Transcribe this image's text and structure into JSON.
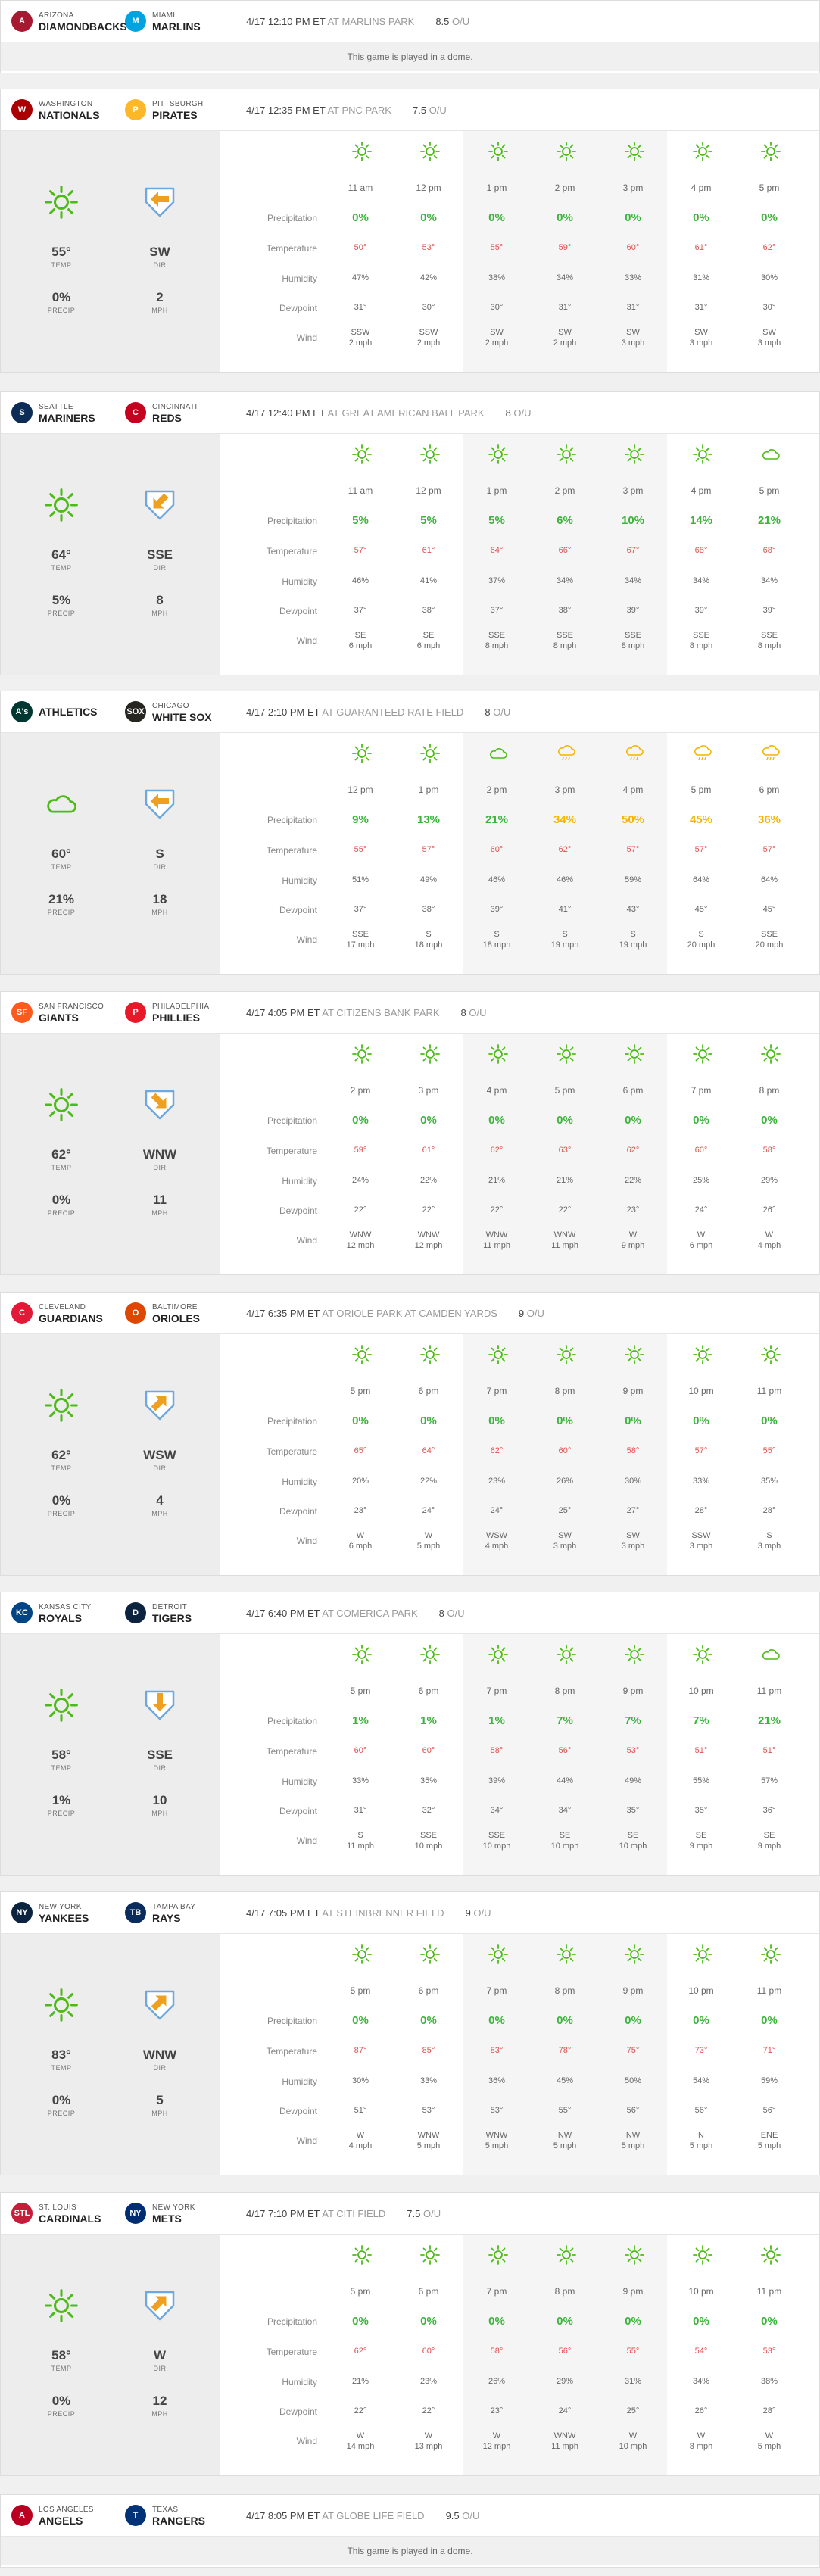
{
  "games": [
    {
      "away": {
        "city": "ARIZONA",
        "name": "DIAMONDBACKS",
        "color": "#a71930",
        "abbr": "A"
      },
      "home": {
        "city": "MIAMI",
        "name": "MARLINS",
        "color": "#00a3e0",
        "abbr": "M"
      },
      "time": "4/17 12:10 PM ET",
      "park": "AT MARLINS PARK",
      "ou": "8.5",
      "ou_label": "O/U",
      "dome": "This game is played in a dome."
    },
    {
      "away": {
        "city": "WASHINGTON",
        "name": "NATIONALS",
        "color": "#ab0003",
        "abbr": "W"
      },
      "home": {
        "city": "PITTSBURGH",
        "name": "PIRATES",
        "color": "#fdb827",
        "abbr": "P"
      },
      "time": "4/17 12:35 PM ET",
      "park": "AT PNC PARK",
      "ou": "7.5",
      "ou_label": "O/U",
      "summary": {
        "temp": "55°",
        "temp_label": "TEMP",
        "precip": "0%",
        "precip_label": "PRECIP",
        "dir": "SW",
        "dir_label": "DIR",
        "mph": "2",
        "mph_label": "MPH",
        "icon": "sun",
        "arrow": "left"
      },
      "row_labels": [
        "Precipitation",
        "Temperature",
        "Humidity",
        "Dewpoint",
        "Wind"
      ],
      "groups": [
        2,
        3,
        2
      ],
      "hours": [
        {
          "t": "11 am",
          "icon": "sun",
          "p": "0%",
          "temp": "50°",
          "hum": "47%",
          "dew": "31°",
          "w1": "SSW",
          "w2": "2 mph"
        },
        {
          "t": "12 pm",
          "icon": "sun",
          "p": "0%",
          "temp": "53°",
          "hum": "42%",
          "dew": "30°",
          "w1": "SSW",
          "w2": "2 mph"
        },
        {
          "t": "1 pm",
          "icon": "sun",
          "p": "0%",
          "temp": "55°",
          "hum": "38%",
          "dew": "30°",
          "w1": "SW",
          "w2": "2 mph"
        },
        {
          "t": "2 pm",
          "icon": "sun",
          "p": "0%",
          "temp": "59°",
          "hum": "34%",
          "dew": "31°",
          "w1": "SW",
          "w2": "2 mph"
        },
        {
          "t": "3 pm",
          "icon": "sun",
          "p": "0%",
          "temp": "60°",
          "hum": "33%",
          "dew": "31°",
          "w1": "SW",
          "w2": "3 mph"
        },
        {
          "t": "4 pm",
          "icon": "sun",
          "p": "0%",
          "temp": "61°",
          "hum": "31%",
          "dew": "31°",
          "w1": "SW",
          "w2": "3 mph"
        },
        {
          "t": "5 pm",
          "icon": "sun",
          "p": "0%",
          "temp": "62°",
          "hum": "30%",
          "dew": "30°",
          "w1": "SW",
          "w2": "3 mph"
        }
      ]
    },
    {
      "away": {
        "city": "SEATTLE",
        "name": "MARINERS",
        "color": "#0c2c56",
        "abbr": "S"
      },
      "home": {
        "city": "CINCINNATI",
        "name": "REDS",
        "color": "#c6011f",
        "abbr": "C"
      },
      "time": "4/17 12:40 PM ET",
      "park": "AT GREAT AMERICAN BALL PARK",
      "ou": "8",
      "ou_label": "O/U",
      "summary": {
        "temp": "64°",
        "temp_label": "TEMP",
        "precip": "5%",
        "precip_label": "PRECIP",
        "dir": "SSE",
        "dir_label": "DIR",
        "mph": "8",
        "mph_label": "MPH",
        "icon": "sun",
        "arrow": "down-left"
      },
      "row_labels": [
        "Precipitation",
        "Temperature",
        "Humidity",
        "Dewpoint",
        "Wind"
      ],
      "groups": [
        2,
        3,
        2
      ],
      "hours": [
        {
          "t": "11 am",
          "icon": "sun",
          "p": "5%",
          "temp": "57°",
          "hum": "46%",
          "dew": "37°",
          "w1": "SE",
          "w2": "6 mph"
        },
        {
          "t": "12 pm",
          "icon": "sun",
          "p": "5%",
          "temp": "61°",
          "hum": "41%",
          "dew": "38°",
          "w1": "SE",
          "w2": "6 mph"
        },
        {
          "t": "1 pm",
          "icon": "sun",
          "p": "5%",
          "temp": "64°",
          "hum": "37%",
          "dew": "37°",
          "w1": "SSE",
          "w2": "8 mph"
        },
        {
          "t": "2 pm",
          "icon": "sun",
          "p": "6%",
          "temp": "66°",
          "hum": "34%",
          "dew": "38°",
          "w1": "SSE",
          "w2": "8 mph"
        },
        {
          "t": "3 pm",
          "icon": "sun",
          "p": "10%",
          "temp": "67°",
          "hum": "34%",
          "dew": "39°",
          "w1": "SSE",
          "w2": "8 mph"
        },
        {
          "t": "4 pm",
          "icon": "sun",
          "p": "14%",
          "temp": "68°",
          "hum": "34%",
          "dew": "39°",
          "w1": "SSE",
          "w2": "8 mph"
        },
        {
          "t": "5 pm",
          "icon": "cloud",
          "p": "21%",
          "temp": "68°",
          "hum": "34%",
          "dew": "39°",
          "w1": "SSE",
          "w2": "8 mph"
        }
      ]
    },
    {
      "away": {
        "city": "",
        "name": "ATHLETICS",
        "color": "#003831",
        "abbr": "A's"
      },
      "home": {
        "city": "CHICAGO",
        "name": "WHITE SOX",
        "color": "#27251f",
        "abbr": "SOX"
      },
      "time": "4/17 2:10 PM ET",
      "park": "AT GUARANTEED RATE FIELD",
      "ou": "8",
      "ou_label": "O/U",
      "summary": {
        "temp": "60°",
        "temp_label": "TEMP",
        "precip": "21%",
        "precip_label": "PRECIP",
        "dir": "S",
        "dir_label": "DIR",
        "mph": "18",
        "mph_label": "MPH",
        "icon": "cloud",
        "arrow": "left"
      },
      "row_labels": [
        "Precipitation",
        "Temperature",
        "Humidity",
        "Dewpoint",
        "Wind"
      ],
      "groups": [
        2,
        3,
        2
      ],
      "hours": [
        {
          "t": "12 pm",
          "icon": "sun",
          "p": "9%",
          "temp": "55°",
          "hum": "51%",
          "dew": "37°",
          "w1": "SSE",
          "w2": "17 mph"
        },
        {
          "t": "1 pm",
          "icon": "sun",
          "p": "13%",
          "temp": "57°",
          "hum": "49%",
          "dew": "38°",
          "w1": "S",
          "w2": "18 mph"
        },
        {
          "t": "2 pm",
          "icon": "cloud",
          "p": "21%",
          "temp": "60°",
          "hum": "46%",
          "dew": "39°",
          "w1": "S",
          "w2": "18 mph"
        },
        {
          "t": "3 pm",
          "icon": "rain",
          "p": "34%",
          "temp": "62°",
          "hum": "46%",
          "dew": "41°",
          "w1": "S",
          "w2": "19 mph"
        },
        {
          "t": "4 pm",
          "icon": "rain",
          "p": "50%",
          "temp": "57°",
          "hum": "59%",
          "dew": "43°",
          "w1": "S",
          "w2": "19 mph"
        },
        {
          "t": "5 pm",
          "icon": "rain",
          "p": "45%",
          "temp": "57°",
          "hum": "64%",
          "dew": "45°",
          "w1": "S",
          "w2": "20 mph"
        },
        {
          "t": "6 pm",
          "icon": "rain",
          "p": "36%",
          "temp": "57°",
          "hum": "64%",
          "dew": "45°",
          "w1": "SSE",
          "w2": "20 mph"
        }
      ]
    },
    {
      "away": {
        "city": "SAN FRANCISCO",
        "name": "GIANTS",
        "color": "#fd5a1e",
        "abbr": "SF"
      },
      "home": {
        "city": "PHILADELPHIA",
        "name": "PHILLIES",
        "color": "#e81828",
        "abbr": "P"
      },
      "time": "4/17 4:05 PM ET",
      "park": "AT CITIZENS BANK PARK",
      "ou": "8",
      "ou_label": "O/U",
      "summary": {
        "temp": "62°",
        "temp_label": "TEMP",
        "precip": "0%",
        "precip_label": "PRECIP",
        "dir": "WNW",
        "dir_label": "DIR",
        "mph": "11",
        "mph_label": "MPH",
        "icon": "sun",
        "arrow": "down-right"
      },
      "row_labels": [
        "Precipitation",
        "Temperature",
        "Humidity",
        "Dewpoint",
        "Wind"
      ],
      "groups": [
        2,
        3,
        2
      ],
      "hours": [
        {
          "t": "2 pm",
          "icon": "sun",
          "p": "0%",
          "temp": "59°",
          "hum": "24%",
          "dew": "22°",
          "w1": "WNW",
          "w2": "12 mph"
        },
        {
          "t": "3 pm",
          "icon": "sun",
          "p": "0%",
          "temp": "61°",
          "hum": "22%",
          "dew": "22°",
          "w1": "WNW",
          "w2": "12 mph"
        },
        {
          "t": "4 pm",
          "icon": "sun",
          "p": "0%",
          "temp": "62°",
          "hum": "21%",
          "dew": "22°",
          "w1": "WNW",
          "w2": "11 mph"
        },
        {
          "t": "5 pm",
          "icon": "sun",
          "p": "0%",
          "temp": "63°",
          "hum": "21%",
          "dew": "22°",
          "w1": "WNW",
          "w2": "11 mph"
        },
        {
          "t": "6 pm",
          "icon": "sun",
          "p": "0%",
          "temp": "62°",
          "hum": "22%",
          "dew": "23°",
          "w1": "W",
          "w2": "9 mph"
        },
        {
          "t": "7 pm",
          "icon": "sun",
          "p": "0%",
          "temp": "60°",
          "hum": "25%",
          "dew": "24°",
          "w1": "W",
          "w2": "6 mph"
        },
        {
          "t": "8 pm",
          "icon": "sun",
          "p": "0%",
          "temp": "58°",
          "hum": "29%",
          "dew": "26°",
          "w1": "W",
          "w2": "4 mph"
        }
      ]
    },
    {
      "away": {
        "city": "CLEVELAND",
        "name": "GUARDIANS",
        "color": "#e31937",
        "abbr": "C"
      },
      "home": {
        "city": "BALTIMORE",
        "name": "ORIOLES",
        "color": "#df4601",
        "abbr": "O"
      },
      "time": "4/17 6:35 PM ET",
      "park": "AT ORIOLE PARK AT CAMDEN YARDS",
      "ou": "9",
      "ou_label": "O/U",
      "summary": {
        "temp": "62°",
        "temp_label": "TEMP",
        "precip": "0%",
        "precip_label": "PRECIP",
        "dir": "WSW",
        "dir_label": "DIR",
        "mph": "4",
        "mph_label": "MPH",
        "icon": "sun",
        "arrow": "up-right"
      },
      "row_labels": [
        "Precipitation",
        "Temperature",
        "Humidity",
        "Dewpoint",
        "Wind"
      ],
      "groups": [
        2,
        3,
        2
      ],
      "hours": [
        {
          "t": "5 pm",
          "icon": "sun",
          "p": "0%",
          "temp": "65°",
          "hum": "20%",
          "dew": "23°",
          "w1": "W",
          "w2": "6 mph"
        },
        {
          "t": "6 pm",
          "icon": "sun",
          "p": "0%",
          "temp": "64°",
          "hum": "22%",
          "dew": "24°",
          "w1": "W",
          "w2": "5 mph"
        },
        {
          "t": "7 pm",
          "icon": "sun",
          "p": "0%",
          "temp": "62°",
          "hum": "23%",
          "dew": "24°",
          "w1": "WSW",
          "w2": "4 mph"
        },
        {
          "t": "8 pm",
          "icon": "sun",
          "p": "0%",
          "temp": "60°",
          "hum": "26%",
          "dew": "25°",
          "w1": "SW",
          "w2": "3 mph"
        },
        {
          "t": "9 pm",
          "icon": "sun",
          "p": "0%",
          "temp": "58°",
          "hum": "30%",
          "dew": "27°",
          "w1": "SW",
          "w2": "3 mph"
        },
        {
          "t": "10 pm",
          "icon": "sun",
          "p": "0%",
          "temp": "57°",
          "hum": "33%",
          "dew": "28°",
          "w1": "SSW",
          "w2": "3 mph"
        },
        {
          "t": "11 pm",
          "icon": "sun",
          "p": "0%",
          "temp": "55°",
          "hum": "35%",
          "dew": "28°",
          "w1": "S",
          "w2": "3 mph"
        }
      ]
    },
    {
      "away": {
        "city": "KANSAS CITY",
        "name": "ROYALS",
        "color": "#004687",
        "abbr": "KC"
      },
      "home": {
        "city": "DETROIT",
        "name": "TIGERS",
        "color": "#0c2340",
        "abbr": "D"
      },
      "time": "4/17 6:40 PM ET",
      "park": "AT COMERICA PARK",
      "ou": "8",
      "ou_label": "O/U",
      "summary": {
        "temp": "58°",
        "temp_label": "TEMP",
        "precip": "1%",
        "precip_label": "PRECIP",
        "dir": "SSE",
        "dir_label": "DIR",
        "mph": "10",
        "mph_label": "MPH",
        "icon": "sun",
        "arrow": "down"
      },
      "row_labels": [
        "Precipitation",
        "Temperature",
        "Humidity",
        "Dewpoint",
        "Wind"
      ],
      "groups": [
        2,
        3,
        2
      ],
      "hours": [
        {
          "t": "5 pm",
          "icon": "sun",
          "p": "1%",
          "temp": "60°",
          "hum": "33%",
          "dew": "31°",
          "w1": "S",
          "w2": "11 mph"
        },
        {
          "t": "6 pm",
          "icon": "sun",
          "p": "1%",
          "temp": "60°",
          "hum": "35%",
          "dew": "32°",
          "w1": "SSE",
          "w2": "10 mph"
        },
        {
          "t": "7 pm",
          "icon": "sun",
          "p": "1%",
          "temp": "58°",
          "hum": "39%",
          "dew": "34°",
          "w1": "SSE",
          "w2": "10 mph"
        },
        {
          "t": "8 pm",
          "icon": "sun",
          "p": "7%",
          "temp": "56°",
          "hum": "44%",
          "dew": "34°",
          "w1": "SE",
          "w2": "10 mph"
        },
        {
          "t": "9 pm",
          "icon": "sun",
          "p": "7%",
          "temp": "53°",
          "hum": "49%",
          "dew": "35°",
          "w1": "SE",
          "w2": "10 mph"
        },
        {
          "t": "10 pm",
          "icon": "sun",
          "p": "7%",
          "temp": "51°",
          "hum": "55%",
          "dew": "35°",
          "w1": "SE",
          "w2": "9 mph"
        },
        {
          "t": "11 pm",
          "icon": "cloud",
          "p": "21%",
          "temp": "51°",
          "hum": "57%",
          "dew": "36°",
          "w1": "SE",
          "w2": "9 mph"
        }
      ]
    },
    {
      "away": {
        "city": "NEW YORK",
        "name": "YANKEES",
        "color": "#0c2340",
        "abbr": "NY"
      },
      "home": {
        "city": "TAMPA BAY",
        "name": "RAYS",
        "color": "#092c5c",
        "abbr": "TB"
      },
      "time": "4/17 7:05 PM ET",
      "park": "AT STEINBRENNER FIELD",
      "ou": "9",
      "ou_label": "O/U",
      "summary": {
        "temp": "83°",
        "temp_label": "TEMP",
        "precip": "0%",
        "precip_label": "PRECIP",
        "dir": "WNW",
        "dir_label": "DIR",
        "mph": "5",
        "mph_label": "MPH",
        "icon": "sun",
        "arrow": "up-right"
      },
      "row_labels": [
        "Precipitation",
        "Temperature",
        "Humidity",
        "Dewpoint",
        "Wind"
      ],
      "groups": [
        2,
        3,
        2
      ],
      "hours": [
        {
          "t": "5 pm",
          "icon": "sun",
          "p": "0%",
          "temp": "87°",
          "hum": "30%",
          "dew": "51°",
          "w1": "W",
          "w2": "4 mph"
        },
        {
          "t": "6 pm",
          "icon": "sun",
          "p": "0%",
          "temp": "85°",
          "hum": "33%",
          "dew": "53°",
          "w1": "WNW",
          "w2": "5 mph"
        },
        {
          "t": "7 pm",
          "icon": "sun",
          "p": "0%",
          "temp": "83°",
          "hum": "36%",
          "dew": "53°",
          "w1": "WNW",
          "w2": "5 mph"
        },
        {
          "t": "8 pm",
          "icon": "sun",
          "p": "0%",
          "temp": "78°",
          "hum": "45%",
          "dew": "55°",
          "w1": "NW",
          "w2": "5 mph"
        },
        {
          "t": "9 pm",
          "icon": "sun",
          "p": "0%",
          "temp": "75°",
          "hum": "50%",
          "dew": "56°",
          "w1": "NW",
          "w2": "5 mph"
        },
        {
          "t": "10 pm",
          "icon": "sun",
          "p": "0%",
          "temp": "73°",
          "hum": "54%",
          "dew": "56°",
          "w1": "N",
          "w2": "5 mph"
        },
        {
          "t": "11 pm",
          "icon": "sun",
          "p": "0%",
          "temp": "71°",
          "hum": "59%",
          "dew": "56°",
          "w1": "ENE",
          "w2": "5 mph"
        }
      ]
    },
    {
      "away": {
        "city": "ST. LOUIS",
        "name": "CARDINALS",
        "color": "#c41e3a",
        "abbr": "STL"
      },
      "home": {
        "city": "NEW YORK",
        "name": "METS",
        "color": "#002d72",
        "abbr": "NY"
      },
      "time": "4/17 7:10 PM ET",
      "park": "AT CITI FIELD",
      "ou": "7.5",
      "ou_label": "O/U",
      "summary": {
        "temp": "58°",
        "temp_label": "TEMP",
        "precip": "0%",
        "precip_label": "PRECIP",
        "dir": "W",
        "dir_label": "DIR",
        "mph": "12",
        "mph_label": "MPH",
        "icon": "sun",
        "arrow": "up-right"
      },
      "row_labels": [
        "Precipitation",
        "Temperature",
        "Humidity",
        "Dewpoint",
        "Wind"
      ],
      "groups": [
        2,
        3,
        2
      ],
      "hours": [
        {
          "t": "5 pm",
          "icon": "sun",
          "p": "0%",
          "temp": "62°",
          "hum": "21%",
          "dew": "22°",
          "w1": "W",
          "w2": "14 mph"
        },
        {
          "t": "6 pm",
          "icon": "sun",
          "p": "0%",
          "temp": "60°",
          "hum": "23%",
          "dew": "22°",
          "w1": "W",
          "w2": "13 mph"
        },
        {
          "t": "7 pm",
          "icon": "sun",
          "p": "0%",
          "temp": "58°",
          "hum": "26%",
          "dew": "23°",
          "w1": "W",
          "w2": "12 mph"
        },
        {
          "t": "8 pm",
          "icon": "sun",
          "p": "0%",
          "temp": "56°",
          "hum": "29%",
          "dew": "24°",
          "w1": "WNW",
          "w2": "11 mph"
        },
        {
          "t": "9 pm",
          "icon": "sun",
          "p": "0%",
          "temp": "55°",
          "hum": "31%",
          "dew": "25°",
          "w1": "W",
          "w2": "10 mph"
        },
        {
          "t": "10 pm",
          "icon": "sun",
          "p": "0%",
          "temp": "54°",
          "hum": "34%",
          "dew": "26°",
          "w1": "W",
          "w2": "8 mph"
        },
        {
          "t": "11 pm",
          "icon": "sun",
          "p": "0%",
          "temp": "53°",
          "hum": "38%",
          "dew": "28°",
          "w1": "W",
          "w2": "5 mph"
        }
      ]
    },
    {
      "away": {
        "city": "LOS ANGELES",
        "name": "ANGELS",
        "color": "#ba0021",
        "abbr": "A"
      },
      "home": {
        "city": "TEXAS",
        "name": "RANGERS",
        "color": "#003278",
        "abbr": "T"
      },
      "time": "4/17 8:05 PM ET",
      "park": "AT GLOBE LIFE FIELD",
      "ou": "9.5",
      "ou_label": "O/U",
      "dome": "This game is played in a dome."
    }
  ],
  "colors": {
    "green": "#3cb43c",
    "amber": "#f4b400",
    "temp_red": "#e05050",
    "icon_green": "#4cbb17",
    "plate_orange": "#f0a020"
  }
}
